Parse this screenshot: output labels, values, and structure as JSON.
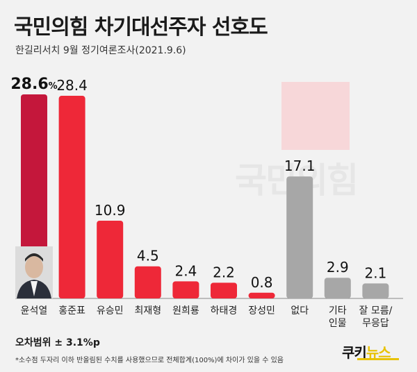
{
  "header": {
    "title": "국민의힘 차기대선주자 선호도",
    "subtitle": "한길리서치 9월 정기여론조사(2021.9.6)"
  },
  "watermark": "국민의힘",
  "chart_data": {
    "type": "bar",
    "categories": [
      "윤석열",
      "홍준표",
      "유승민",
      "최재형",
      "원희룡",
      "하태경",
      "장성민",
      "없다",
      "기타 인물",
      "잘 모름/ 무응답"
    ],
    "values": [
      28.6,
      28.4,
      10.9,
      4.5,
      2.4,
      2.2,
      0.8,
      17.1,
      2.9,
      2.1
    ],
    "value_labels": [
      "28.6",
      "28.4",
      "10.9",
      "4.5",
      "2.4",
      "2.2",
      "0.8",
      "17.1",
      "2.9",
      "2.1"
    ],
    "highlight_unit": "%",
    "ylim": [
      0,
      30
    ],
    "grid": false,
    "colors": {
      "highlight": "#c4173b",
      "candidate": "#ee2838",
      "other": "#a7a7a7",
      "accent_square": "#f7d7d9"
    }
  },
  "footer": {
    "margin_of_error": "오차범위 ± 3.1%p",
    "note": "*소수점 두자리 이하 반올림된 수치를 사용했으므로 전체합계(100%)에 차이가 있을 수 있음",
    "brand_part1": "쿠키",
    "brand_part2": "뉴스"
  }
}
